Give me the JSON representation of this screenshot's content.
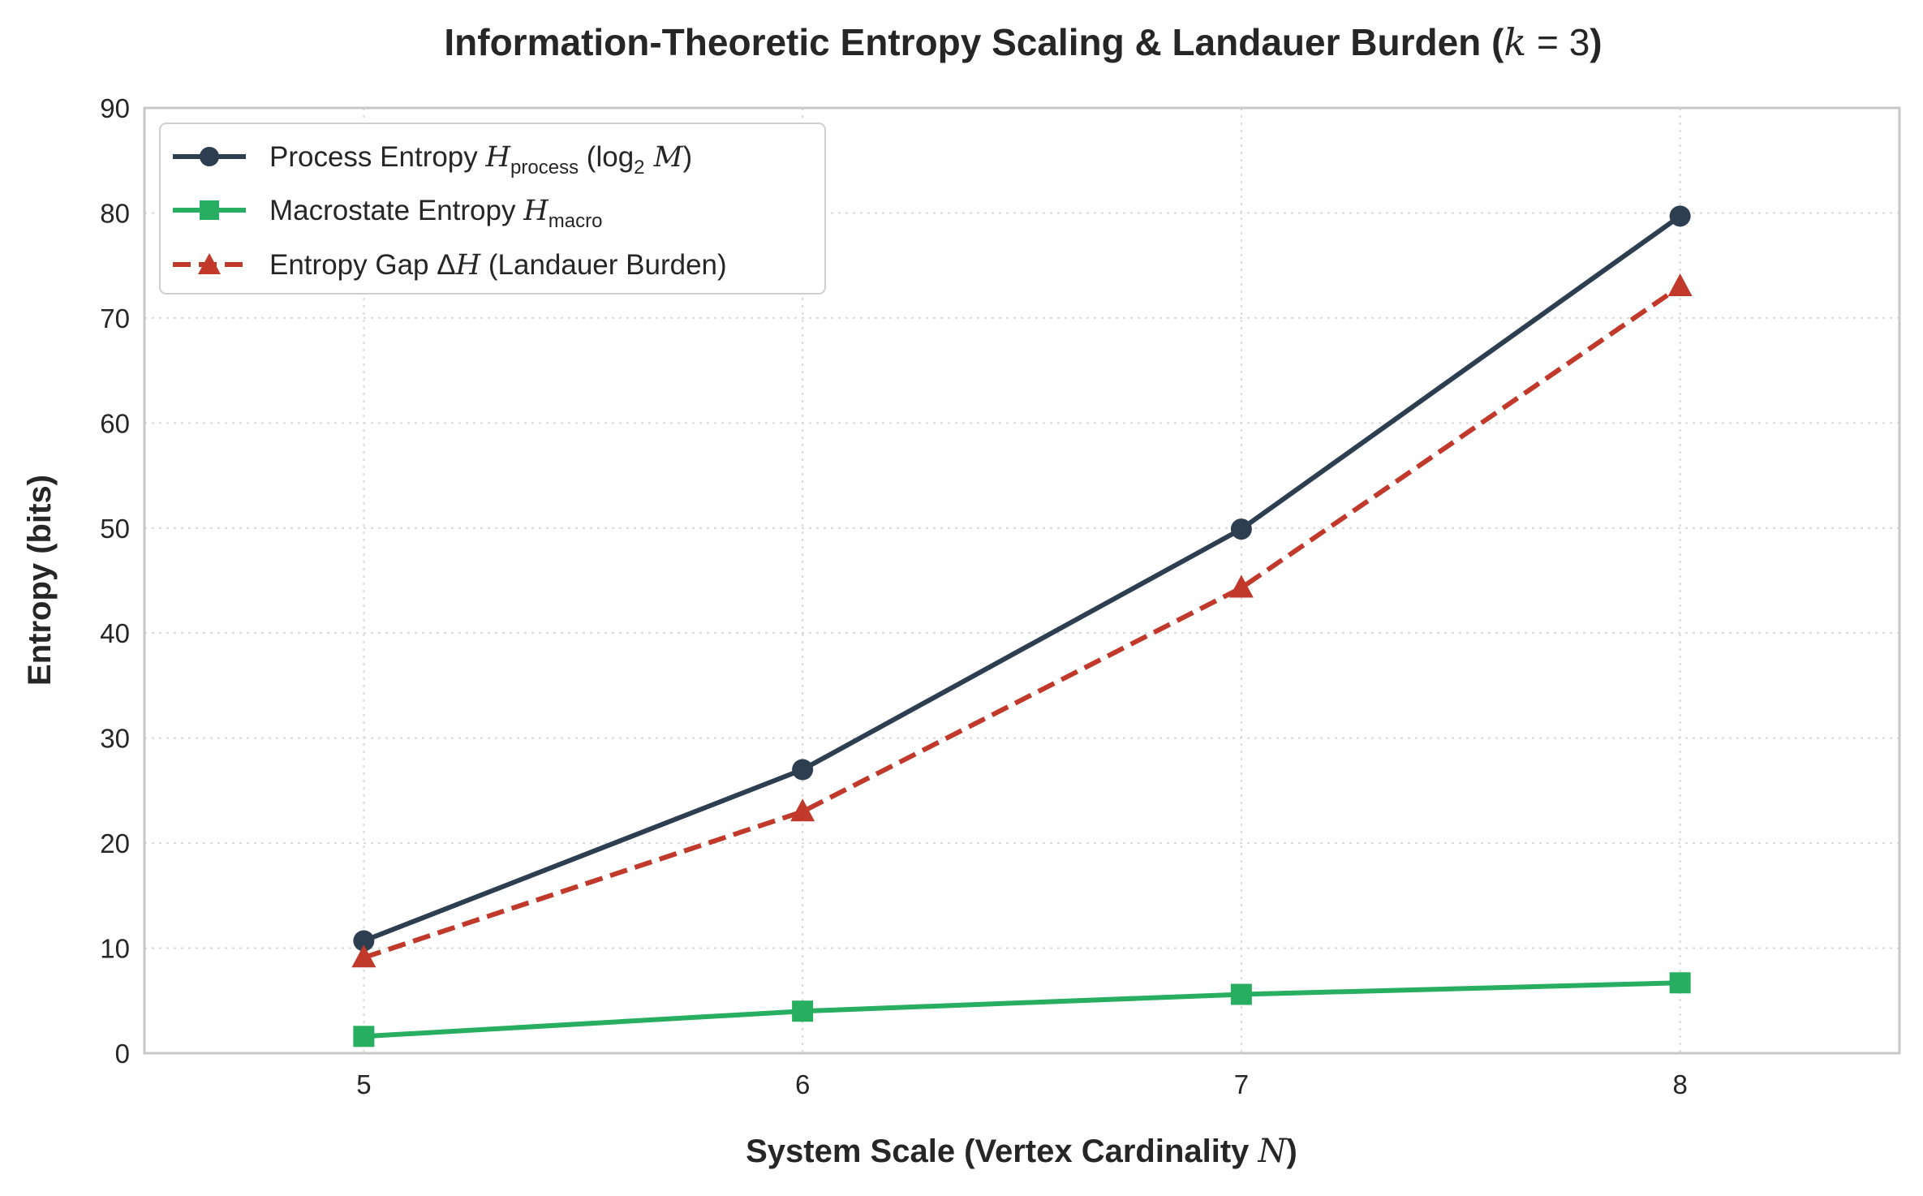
{
  "chart_data": {
    "type": "line",
    "title": "Information-Theoretic Entropy Scaling & Landauer Burden (",
    "title_math_var": "k",
    "title_math_rest": " = 3",
    "title_close": ")",
    "xlabel": "System Scale (Vertex Cardinality ",
    "xlabel_var": "N",
    "xlabel_close": ")",
    "ylabel": "Entropy (bits)",
    "x": [
      5,
      6,
      7,
      8
    ],
    "xlim": [
      4.5,
      8.5
    ],
    "ylim": [
      0,
      90
    ],
    "yticks": [
      0,
      10,
      20,
      30,
      40,
      50,
      60,
      70,
      80,
      90
    ],
    "xticks": [
      5,
      6,
      7,
      8
    ],
    "grid": true,
    "legend_position": "upper-left",
    "series": [
      {
        "name": "Process Entropy H_process (log2 M)",
        "legend": {
          "pre": "Process Entropy ",
          "var": "H",
          "sub": "process",
          "post1": " (log",
          "sub2": "2",
          "var2": " M",
          "post2": ")"
        },
        "values": [
          10.7,
          27.0,
          49.9,
          79.7
        ],
        "color": "#2c3e50",
        "marker": "circle",
        "dash": "solid"
      },
      {
        "name": "Macrostate Entropy H_macro",
        "legend": {
          "pre": "Macrostate Entropy ",
          "var": "H",
          "sub": "macro"
        },
        "values": [
          1.6,
          4.0,
          5.6,
          6.7
        ],
        "color": "#27ae60",
        "marker": "square",
        "dash": "solid"
      },
      {
        "name": "Entropy Gap ΔH (Landauer Burden)",
        "legend": {
          "pre": "Entropy Gap Δ",
          "var": "H",
          "post": " (Landauer Burden)"
        },
        "values": [
          9.1,
          23.0,
          44.3,
          73.0
        ],
        "color": "#c0392b",
        "marker": "triangle",
        "dash": "dashed"
      }
    ]
  }
}
